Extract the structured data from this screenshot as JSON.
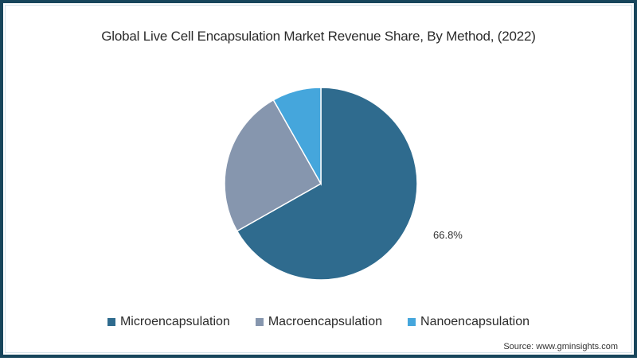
{
  "title": "Global Live Cell Encapsulation Market Revenue Share, By Method, (2022)",
  "source": "Source: www.gminsights.com",
  "label_visible": "66.8%",
  "colors": {
    "frame_border": "#17455b",
    "Microencapsulation": "#2f6b8e",
    "Macroencapsulation": "#8696ae",
    "Nanoencapsulation": "#45a6dc"
  },
  "legend": [
    {
      "label": "Microencapsulation",
      "color": "#2f6b8e"
    },
    {
      "label": "Macroencapsulation",
      "color": "#8696ae"
    },
    {
      "label": "Nanoencapsulation",
      "color": "#45a6dc"
    }
  ],
  "chart_data": {
    "type": "pie",
    "title": "Global Live Cell Encapsulation Market Revenue Share, By Method, (2022)",
    "categories": [
      "Microencapsulation",
      "Macroencapsulation",
      "Nanoencapsulation"
    ],
    "values": [
      66.8,
      25.0,
      8.2
    ],
    "unit": "%",
    "data_labels": {
      "Microencapsulation": "66.8%"
    },
    "start_angle": "12 o'clock, clockwise",
    "legend_position": "bottom"
  }
}
